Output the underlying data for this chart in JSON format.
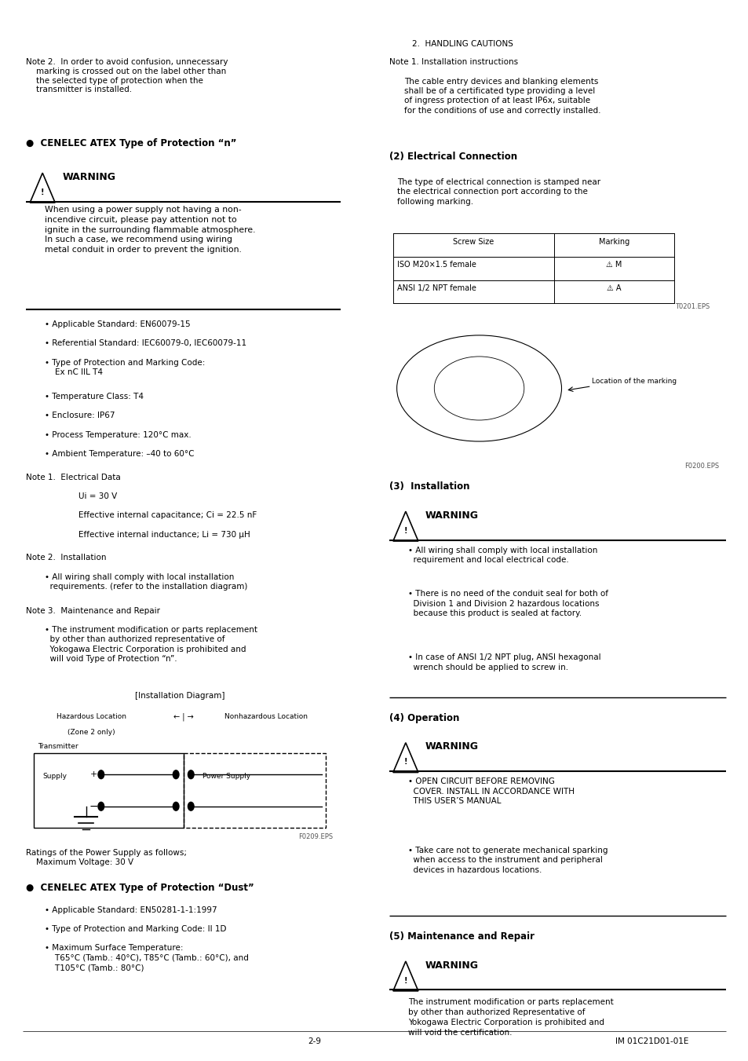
{
  "page_bg": "#ffffff",
  "text_color": "#000000",
  "page_width": 9.54,
  "page_height": 13.51,
  "dpi": 100,
  "header_text": "2.  HANDLING CAUTIONS",
  "footer_left": "2-9",
  "footer_right": "IM 01C21D01-01E",
  "content": {
    "section_cenelec_n": "●  CENELEC ATEX Type of Protection “n”",
    "warning_label": "WARNING",
    "section_cenelec_dust": "●  CENELEC ATEX Type of Protection “Dust”",
    "right_note1_title": "Note 1. Installation instructions",
    "section2_elec_conn": "(2) Electrical Connection",
    "table_headers": [
      "Screw Size",
      "Marking"
    ],
    "table_rows": [
      [
        "ISO M20×1.5 female",
        "⚠ M"
      ],
      [
        "ANSI 1/2 NPT female",
        "⚠ A"
      ]
    ],
    "section3_install": "(3)  Installation",
    "section4_op": "(4) Operation",
    "section5_maint": "(5) Maintenance and Repair"
  }
}
